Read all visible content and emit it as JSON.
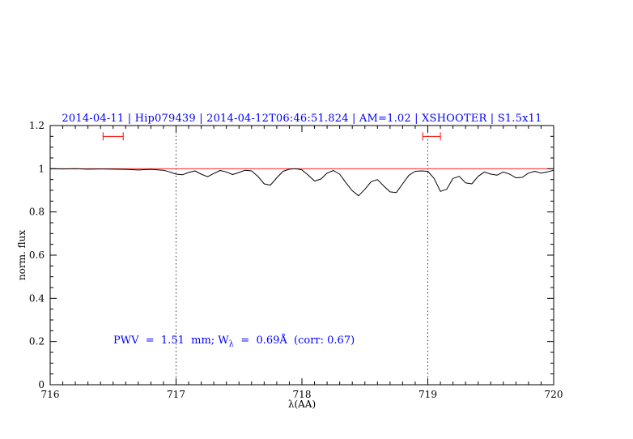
{
  "chart_data": {
    "type": "line",
    "title": "2014-04-11 | Hip079439 | 2014-04-12T06:46:51.824 | AM=1.02 | XSHOOTER | S1.5x11",
    "title_color": "#0000ff",
    "xlabel": "λ(AA)",
    "ylabel": "norm. flux",
    "xlim": [
      716,
      720
    ],
    "ylim": [
      0,
      1.2
    ],
    "x_ticks": [
      716,
      717,
      718,
      719,
      720
    ],
    "x_tick_labels": [
      "716",
      "717",
      "718",
      "719",
      "720"
    ],
    "y_ticks": [
      0,
      0.2,
      0.4,
      0.6,
      0.8,
      1,
      1.2
    ],
    "y_tick_labels": [
      "0",
      "0.2",
      "0.4",
      "0.6",
      "0.8",
      "1",
      "1.2"
    ],
    "grid": "off",
    "dotted_vlines": [
      717,
      719
    ],
    "continuum_y": 1.0,
    "continuum_color": "#ff0000",
    "spectrum_color": "#000000",
    "line_markers": [
      {
        "x1": 716.42,
        "x2": 716.58,
        "y": 1.15
      },
      {
        "x1": 718.96,
        "x2": 719.1,
        "y": 1.15
      }
    ],
    "spectrum": [
      [
        716.0,
        1.0
      ],
      [
        716.1,
        0.999
      ],
      [
        716.2,
        1.0
      ],
      [
        716.3,
        0.998
      ],
      [
        716.4,
        0.999
      ],
      [
        716.5,
        0.998
      ],
      [
        716.6,
        0.997
      ],
      [
        716.7,
        0.994
      ],
      [
        716.8,
        0.997
      ],
      [
        716.9,
        0.993
      ],
      [
        716.95,
        0.985
      ],
      [
        717.0,
        0.975
      ],
      [
        717.05,
        0.972
      ],
      [
        717.1,
        0.983
      ],
      [
        717.15,
        0.99
      ],
      [
        717.2,
        0.975
      ],
      [
        717.25,
        0.963
      ],
      [
        717.3,
        0.978
      ],
      [
        717.35,
        0.992
      ],
      [
        717.4,
        0.985
      ],
      [
        717.45,
        0.973
      ],
      [
        717.5,
        0.983
      ],
      [
        717.55,
        0.993
      ],
      [
        717.6,
        0.99
      ],
      [
        717.65,
        0.965
      ],
      [
        717.7,
        0.93
      ],
      [
        717.75,
        0.924
      ],
      [
        717.8,
        0.958
      ],
      [
        717.85,
        0.988
      ],
      [
        717.9,
        0.998
      ],
      [
        717.95,
        1.0
      ],
      [
        718.0,
        0.995
      ],
      [
        718.05,
        0.97
      ],
      [
        718.1,
        0.943
      ],
      [
        718.15,
        0.952
      ],
      [
        718.2,
        0.98
      ],
      [
        718.25,
        0.992
      ],
      [
        718.3,
        0.975
      ],
      [
        718.35,
        0.935
      ],
      [
        718.4,
        0.898
      ],
      [
        718.45,
        0.875
      ],
      [
        718.5,
        0.905
      ],
      [
        718.55,
        0.94
      ],
      [
        718.6,
        0.95
      ],
      [
        718.65,
        0.92
      ],
      [
        718.7,
        0.893
      ],
      [
        718.75,
        0.89
      ],
      [
        718.8,
        0.93
      ],
      [
        718.85,
        0.97
      ],
      [
        718.9,
        0.988
      ],
      [
        718.95,
        0.99
      ],
      [
        719.0,
        0.988
      ],
      [
        719.05,
        0.955
      ],
      [
        719.1,
        0.895
      ],
      [
        719.15,
        0.905
      ],
      [
        719.2,
        0.955
      ],
      [
        719.25,
        0.965
      ],
      [
        719.3,
        0.935
      ],
      [
        719.35,
        0.93
      ],
      [
        719.4,
        0.965
      ],
      [
        719.45,
        0.985
      ],
      [
        719.5,
        0.975
      ],
      [
        719.55,
        0.97
      ],
      [
        719.6,
        0.985
      ],
      [
        719.65,
        0.975
      ],
      [
        719.7,
        0.958
      ],
      [
        719.75,
        0.96
      ],
      [
        719.8,
        0.98
      ],
      [
        719.85,
        0.988
      ],
      [
        719.9,
        0.98
      ],
      [
        719.95,
        0.985
      ],
      [
        720.0,
        0.993
      ]
    ]
  },
  "annotation": {
    "prefix": "PWV  =  1.51  mm; W",
    "sub": "λ",
    "suffix": "  =  0.69Å  (corr: 0.67)",
    "color": "#0000ff"
  }
}
